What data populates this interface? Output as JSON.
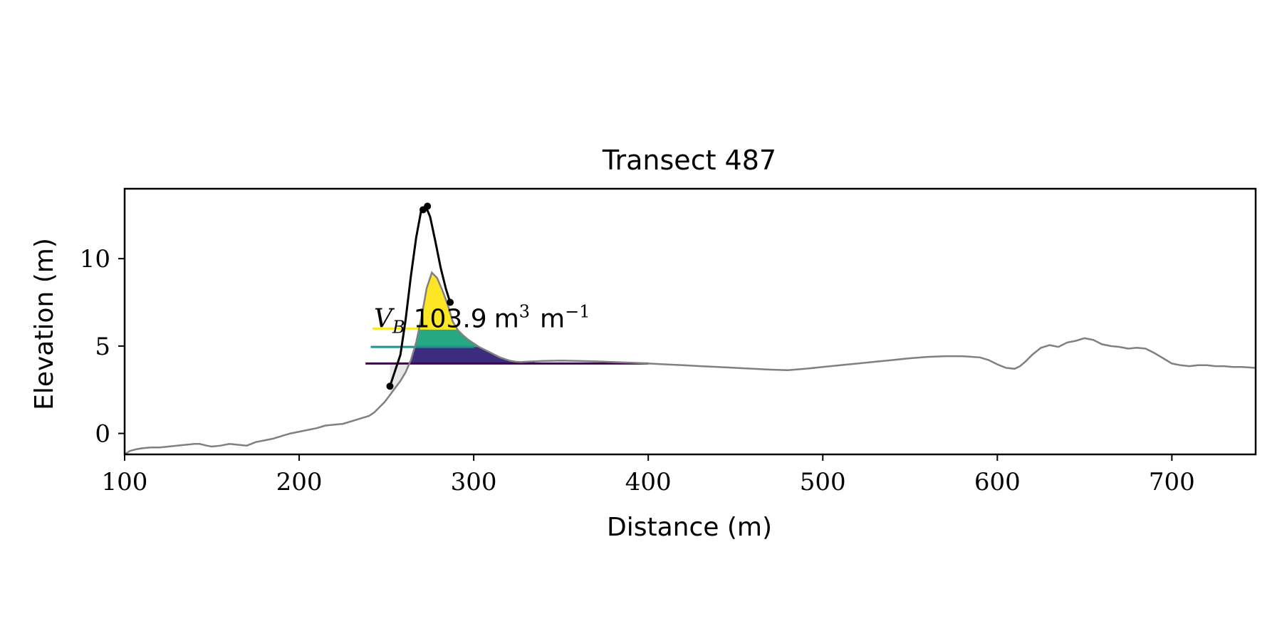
{
  "chart_data": {
    "type": "line",
    "title": "Transect 487",
    "xlabel": "Distance (m)",
    "ylabel": "Elevation (m)",
    "xlim": [
      100,
      748
    ],
    "ylim": [
      -1.2,
      14.0
    ],
    "xticks": [
      100,
      200,
      300,
      400,
      500,
      600,
      700
    ],
    "yticks": [
      0,
      5,
      10
    ],
    "grid": false,
    "legend": "none",
    "colors": {
      "profile": "#808080",
      "dune_outline": "#000000",
      "band_upper": "#fde725",
      "band_middle": "#21918c",
      "band_lower": "#440154",
      "band_fill_lower": "#3b2c7e",
      "band_fill_middle": "#25a883",
      "shade": "#d9d9d9"
    },
    "series": [
      {
        "x": [
          100,
          103,
          107,
          110,
          115,
          120,
          125,
          130,
          135,
          140,
          143,
          147,
          150,
          155,
          160,
          165,
          170,
          175,
          180,
          185,
          190,
          195,
          200,
          205,
          210,
          215,
          220,
          225,
          230,
          235,
          240,
          243,
          246,
          249,
          252,
          255,
          258,
          261,
          264,
          267,
          270,
          273,
          276,
          279,
          282,
          285,
          288,
          291,
          294,
          297,
          300,
          303,
          306,
          309,
          312,
          315,
          318,
          321,
          324,
          327,
          330,
          340,
          350,
          360,
          370,
          380,
          390,
          400,
          410,
          420,
          430,
          440,
          450,
          460,
          470,
          480,
          490,
          500,
          510,
          520,
          530,
          540,
          550,
          560,
          570,
          580,
          590,
          595,
          600,
          605,
          610,
          613,
          616,
          620,
          625,
          630,
          635,
          640,
          645,
          650,
          655,
          660,
          665,
          670,
          675,
          680,
          685,
          690,
          695,
          700,
          705,
          710,
          715,
          720,
          725,
          730,
          735,
          740,
          748
        ],
        "y": [
          -1.2,
          -1.0,
          -0.9,
          -0.85,
          -0.8,
          -0.8,
          -0.75,
          -0.7,
          -0.65,
          -0.6,
          -0.6,
          -0.7,
          -0.75,
          -0.7,
          -0.6,
          -0.65,
          -0.7,
          -0.5,
          -0.4,
          -0.3,
          -0.15,
          0.0,
          0.1,
          0.2,
          0.3,
          0.45,
          0.5,
          0.55,
          0.7,
          0.85,
          1.0,
          1.2,
          1.5,
          1.8,
          2.2,
          2.6,
          3.0,
          3.5,
          4.2,
          5.2,
          6.6,
          8.3,
          9.2,
          8.9,
          8.2,
          7.4,
          6.4,
          5.9,
          5.6,
          5.35,
          5.15,
          4.95,
          4.8,
          4.65,
          4.5,
          4.35,
          4.25,
          4.15,
          4.1,
          4.08,
          4.1,
          4.15,
          4.17,
          4.15,
          4.12,
          4.08,
          4.05,
          4.0,
          3.95,
          3.9,
          3.85,
          3.8,
          3.75,
          3.7,
          3.65,
          3.62,
          3.7,
          3.8,
          3.9,
          4.0,
          4.1,
          4.2,
          4.3,
          4.38,
          4.42,
          4.42,
          4.35,
          4.2,
          3.95,
          3.75,
          3.7,
          3.85,
          4.1,
          4.5,
          4.9,
          5.05,
          4.95,
          5.2,
          5.3,
          5.45,
          5.35,
          5.1,
          5.0,
          4.95,
          4.85,
          4.9,
          4.85,
          4.6,
          4.3,
          4.0,
          3.9,
          3.85,
          3.9,
          3.9,
          3.85,
          3.85,
          3.8,
          3.8,
          3.75
        ]
      }
    ],
    "dune_outline": {
      "x": [
        252,
        258,
        261,
        264,
        267,
        270,
        272.5,
        275,
        278,
        281,
        284,
        286.5
      ],
      "y": [
        2.7,
        4.5,
        6.5,
        9.0,
        11.2,
        12.8,
        13.0,
        12.4,
        11.0,
        9.5,
        8.3,
        7.5
      ]
    },
    "points": [
      {
        "x": 252,
        "y": 2.7
      },
      {
        "x": 271,
        "y": 12.8
      },
      {
        "x": 273.5,
        "y": 13.0
      },
      {
        "x": 286.5,
        "y": 7.5
      }
    ],
    "volume_bands": [
      {
        "level": 4.0,
        "line_x": [
          238,
          400
        ]
      },
      {
        "level": 4.95,
        "line_x": [
          241,
          300
        ]
      },
      {
        "level": 6.0,
        "line_x": [
          242,
          290
        ]
      }
    ],
    "annotation": {
      "symbol": "V",
      "subscript": "B",
      "value": "103.9",
      "unit_base": "m",
      "unit_exp": "3",
      "per_unit": "m",
      "per_exp": "−1",
      "x": 242,
      "y": 6.4
    }
  }
}
